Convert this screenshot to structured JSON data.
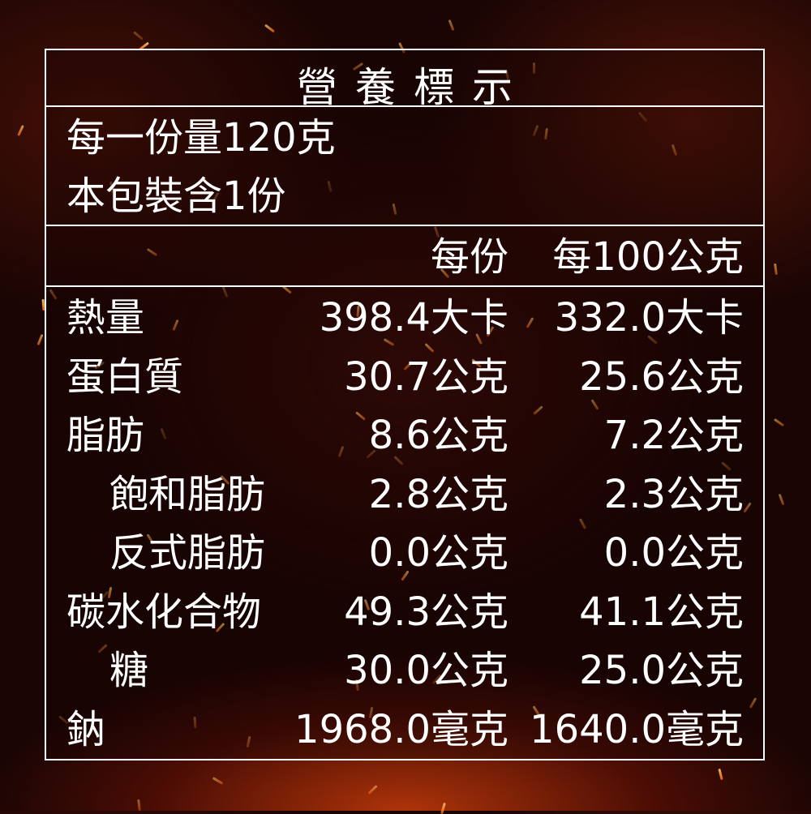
{
  "title": "營養標示",
  "serving": {
    "size": "每一份量120克",
    "count": "本包裝含1份"
  },
  "columns": {
    "per_serving": "每份",
    "per_100g": "每100公克"
  },
  "rows": [
    {
      "label": "熱量",
      "indent": false,
      "per_serving": "398.4大卡",
      "per_100g": "332.0大卡"
    },
    {
      "label": "蛋白質",
      "indent": false,
      "per_serving": "30.7公克",
      "per_100g": "25.6公克"
    },
    {
      "label": "脂肪",
      "indent": false,
      "per_serving": "8.6公克",
      "per_100g": "7.2公克"
    },
    {
      "label": "飽和脂肪",
      "indent": true,
      "per_serving": "2.8公克",
      "per_100g": "2.3公克"
    },
    {
      "label": "反式脂肪",
      "indent": true,
      "per_serving": "0.0公克",
      "per_100g": "0.0公克"
    },
    {
      "label": "碳水化合物",
      "indent": false,
      "per_serving": "49.3公克",
      "per_100g": "41.1公克"
    },
    {
      "label": "糖",
      "indent": true,
      "per_serving": "30.0公克",
      "per_100g": "25.0公克"
    },
    {
      "label": "鈉",
      "indent": false,
      "per_serving": "1968.0毫克",
      "per_100g": "1640.0毫克"
    }
  ]
}
